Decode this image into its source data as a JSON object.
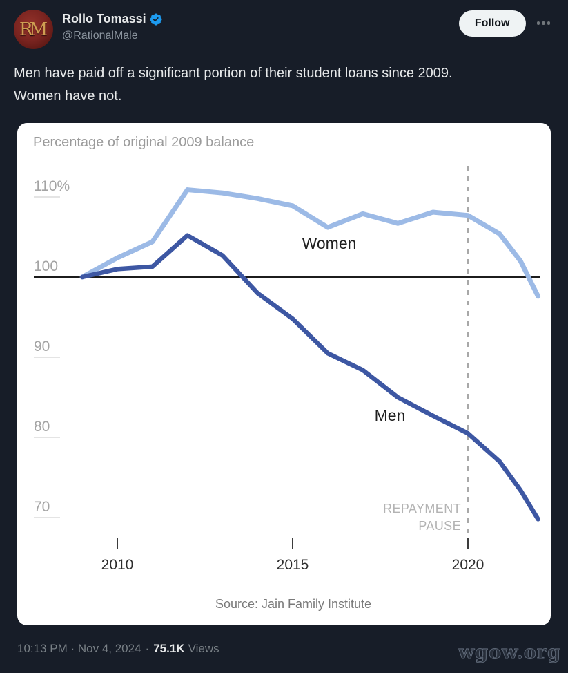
{
  "colors": {
    "background": "#171d28",
    "card_bg": "#ffffff",
    "verified_blue": "#1d9bf0",
    "women_line": "#9cbae6",
    "men_line": "#3d57a3"
  },
  "header": {
    "display_name": "Rollo Tomassi",
    "handle": "@RationalMale",
    "avatar_monogram": "RM",
    "follow_button": "Follow"
  },
  "tweet": {
    "text": "Men have paid off a significant portion of their student loans since 2009.\nWomen have not."
  },
  "chart_data": {
    "type": "line",
    "title": "Percentage of original 2009 balance",
    "source": "Source: Jain Family Institute",
    "baseline": 100,
    "ylim": [
      67,
      114
    ],
    "xlim": [
      2008.9,
      2022.3
    ],
    "grid": "off",
    "legend_position": "inline-labels",
    "y_ticks": [
      {
        "label": "110%",
        "value": 110
      },
      {
        "label": "100",
        "value": 100
      },
      {
        "label": "90",
        "value": 90
      },
      {
        "label": "80",
        "value": 80
      },
      {
        "label": "70",
        "value": 70
      }
    ],
    "x_ticks": [
      {
        "label": "2010",
        "value": 2010
      },
      {
        "label": "2015",
        "value": 2015
      },
      {
        "label": "2020",
        "value": 2020
      }
    ],
    "series": [
      {
        "name": "Women",
        "color": "#9cbae6",
        "x": [
          2009,
          2010,
          2011,
          2012,
          2013,
          2014,
          2015,
          2016,
          2017,
          2018,
          2019,
          2020,
          2020.9,
          2021.5,
          2022
        ],
        "values": [
          100,
          102.4,
          104.4,
          110.9,
          110.5,
          109.8,
          108.9,
          106.2,
          107.9,
          106.7,
          108.1,
          107.7,
          105.4,
          102.0,
          97.6
        ]
      },
      {
        "name": "Men",
        "color": "#3d57a3",
        "x": [
          2009,
          2010,
          2011,
          2012,
          2013,
          2014,
          2015,
          2016,
          2017,
          2018,
          2019,
          2020,
          2020.9,
          2021.5,
          2022
        ],
        "values": [
          100,
          101.0,
          101.3,
          105.2,
          102.7,
          98.0,
          94.8,
          90.5,
          88.4,
          85.0,
          82.7,
          80.5,
          77.0,
          73.4,
          69.8
        ]
      }
    ],
    "annotations": {
      "repayment_pause": {
        "line1": "REPAYMENT",
        "line2": "PAUSE",
        "x": 2020
      }
    }
  },
  "footer": {
    "timestamp": "10:13 PM · Nov 4, 2024",
    "separator": "·",
    "views_count": "75.1K",
    "views_label": "Views",
    "watermark": "wgow.org"
  }
}
